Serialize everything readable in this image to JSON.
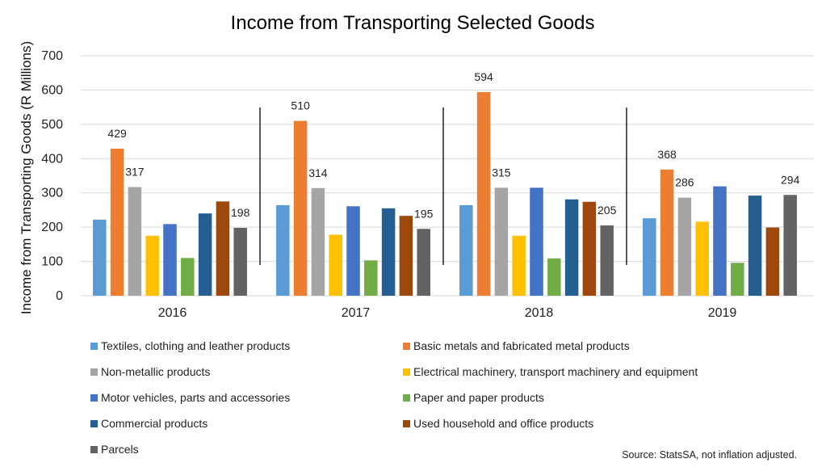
{
  "chart_data": {
    "type": "bar",
    "title": "Income from Transporting Selected Goods",
    "xlabel": "",
    "ylabel": "Income from Transporting Goods (R Millions)",
    "ylim": [
      0,
      700
    ],
    "yticks": [
      0,
      100,
      200,
      300,
      400,
      500,
      600,
      700
    ],
    "ytick_labels": [
      "0",
      "100",
      "200",
      "300",
      "400",
      "500",
      "600",
      "700"
    ],
    "grid": true,
    "legend_position": "bottom",
    "categories": [
      "2016",
      "2017",
      "2018",
      "2019"
    ],
    "series": [
      {
        "name": "Textiles, clothing and leather products",
        "color": "#5B9BD5",
        "values": [
          222,
          264,
          264,
          226
        ],
        "labels": [
          null,
          null,
          null,
          null
        ]
      },
      {
        "name": "Basic metals and fabricated metal products",
        "color": "#ED7D31",
        "values": [
          429,
          510,
          594,
          368
        ],
        "labels": [
          "429",
          "510",
          "594",
          "368"
        ]
      },
      {
        "name": "Non-metallic products",
        "color": "#A5A5A5",
        "values": [
          317,
          314,
          315,
          286
        ],
        "labels": [
          "317",
          "314",
          "315",
          "286"
        ]
      },
      {
        "name": "Electrical machinery, transport machinery and equipment",
        "color": "#FFC000",
        "values": [
          175,
          178,
          175,
          216
        ],
        "labels": [
          null,
          null,
          null,
          null
        ]
      },
      {
        "name": "Motor vehicles, parts and accessories",
        "color": "#4472C4",
        "values": [
          209,
          261,
          315,
          319
        ],
        "labels": [
          null,
          null,
          null,
          null
        ]
      },
      {
        "name": "Paper and paper products",
        "color": "#70AD47",
        "values": [
          110,
          103,
          109,
          96
        ],
        "labels": [
          null,
          null,
          null,
          null
        ]
      },
      {
        "name": "Commercial products",
        "color": "#255E91",
        "values": [
          240,
          255,
          281,
          292
        ],
        "labels": [
          null,
          null,
          null,
          null
        ]
      },
      {
        "name": "Used household and office products",
        "color": "#9E480E",
        "values": [
          275,
          233,
          274,
          199
        ],
        "labels": [
          null,
          null,
          null,
          null
        ]
      },
      {
        "name": "Parcels",
        "color": "#636363",
        "values": [
          198,
          195,
          205,
          294
        ],
        "labels": [
          "198",
          "195",
          "205",
          "294"
        ]
      }
    ],
    "annotations": [
      "Source: StatsSA, not inflation adjusted."
    ]
  },
  "source_note": "Source: StatsSA, not inflation adjusted."
}
